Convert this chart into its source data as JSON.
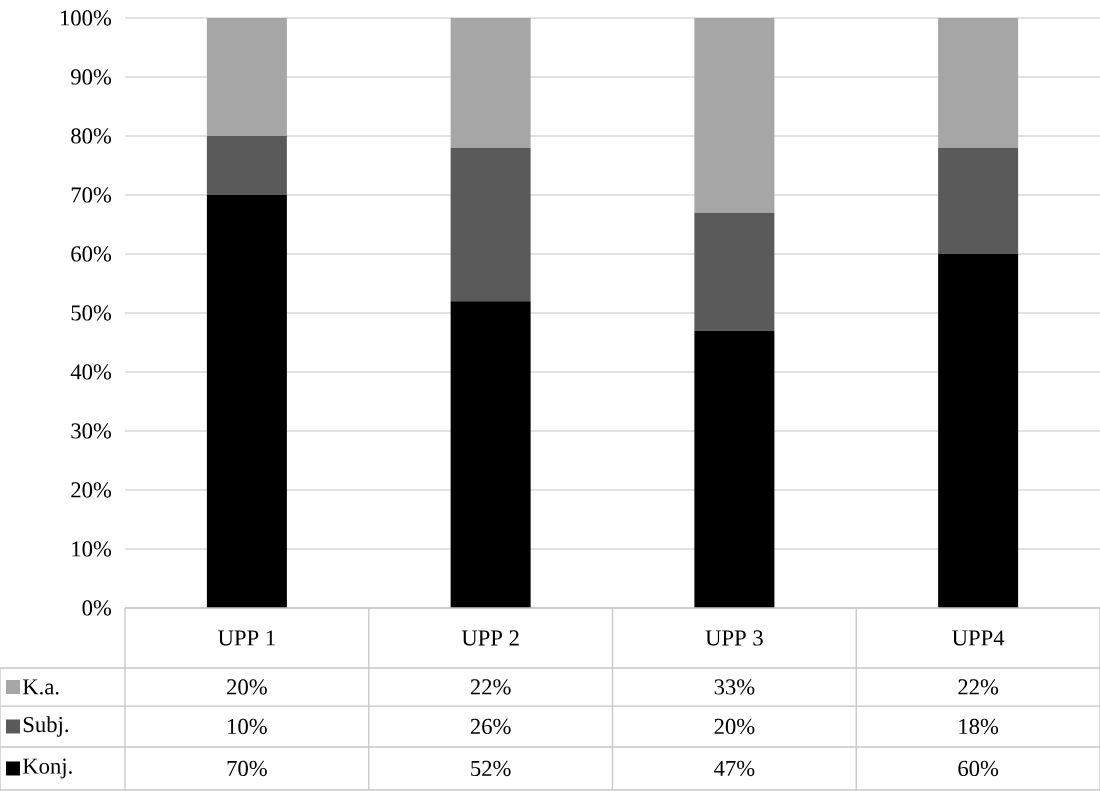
{
  "chart_data": {
    "type": "bar",
    "stacked": true,
    "categories": [
      "UPP 1",
      "UPP 2",
      "UPP 3",
      "UPP4"
    ],
    "series": [
      {
        "name": "Konj.",
        "color": "#000000",
        "values": [
          70,
          52,
          47,
          60
        ],
        "value_labels": [
          "70%",
          "52%",
          "47%",
          "60%"
        ]
      },
      {
        "name": "Subj.",
        "color": "#5a5a5a",
        "values": [
          10,
          26,
          20,
          18
        ],
        "value_labels": [
          "10%",
          "26%",
          "20%",
          "18%"
        ]
      },
      {
        "name": "K.a.",
        "color": "#a6a6a6",
        "values": [
          20,
          22,
          33,
          22
        ],
        "value_labels": [
          "20%",
          "22%",
          "33%",
          "22%"
        ]
      }
    ],
    "ylim": [
      0,
      100
    ],
    "yticks": [
      {
        "value": 0,
        "label": "0%"
      },
      {
        "value": 10,
        "label": "10%"
      },
      {
        "value": 20,
        "label": "20%"
      },
      {
        "value": 30,
        "label": "30%"
      },
      {
        "value": 40,
        "label": "40%"
      },
      {
        "value": 50,
        "label": "50%"
      },
      {
        "value": 60,
        "label": "60%"
      },
      {
        "value": 70,
        "label": "70%"
      },
      {
        "value": 80,
        "label": "80%"
      },
      {
        "value": 90,
        "label": "90%"
      },
      {
        "value": 100,
        "label": "100%"
      }
    ],
    "grid": "y",
    "legend": "bottom left"
  }
}
